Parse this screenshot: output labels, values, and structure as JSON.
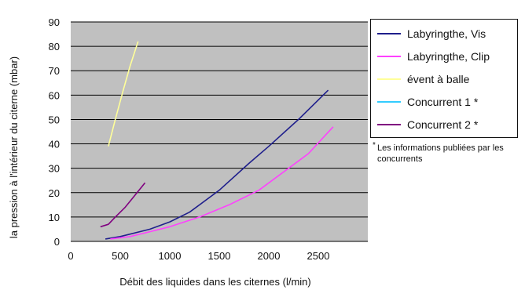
{
  "chart_data": {
    "type": "line",
    "title": "",
    "xlabel": "Débit des liquides dans les citernes (l/min)",
    "ylabel": "la pression à l'intérieur du citerne (mbar)",
    "xlim": [
      0,
      3000
    ],
    "ylim": [
      0,
      90
    ],
    "xticks": [
      0,
      500,
      1000,
      1500,
      2000,
      2500
    ],
    "yticks": [
      0,
      10,
      20,
      30,
      40,
      50,
      60,
      70,
      80,
      90
    ],
    "grid": "horizontal",
    "plot_background": "#c0c0c0",
    "legend_placement": "right",
    "series": [
      {
        "name": "Labyringthe, Vis",
        "color": "#1f1f8c",
        "points": [
          [
            350,
            1
          ],
          [
            500,
            2
          ],
          [
            800,
            5
          ],
          [
            1000,
            8
          ],
          [
            1200,
            12
          ],
          [
            1500,
            21
          ],
          [
            1800,
            32
          ],
          [
            2000,
            39
          ],
          [
            2300,
            50
          ],
          [
            2600,
            62
          ]
        ]
      },
      {
        "name": "Labyringthe, Clip",
        "color": "#ff40ff",
        "points": [
          [
            400,
            1
          ],
          [
            600,
            2
          ],
          [
            800,
            4
          ],
          [
            1000,
            6
          ],
          [
            1300,
            10
          ],
          [
            1600,
            15
          ],
          [
            1900,
            21
          ],
          [
            2100,
            27
          ],
          [
            2400,
            36
          ],
          [
            2650,
            47
          ]
        ]
      },
      {
        "name": "évent à balle",
        "color": "#ffff99",
        "points": [
          [
            380,
            39
          ],
          [
            450,
            50
          ],
          [
            530,
            62
          ],
          [
            600,
            72
          ],
          [
            680,
            82
          ]
        ]
      },
      {
        "name": "Concurrent 1 *",
        "color": "#33ccff",
        "points": []
      },
      {
        "name": "Concurrent 2 *",
        "color": "#800080",
        "points": [
          [
            300,
            6
          ],
          [
            380,
            7
          ],
          [
            450,
            10
          ],
          [
            550,
            14
          ],
          [
            650,
            19
          ],
          [
            750,
            24
          ]
        ]
      }
    ],
    "annotation": {
      "marker": "*",
      "text": "Les informations publiées par les concurrents"
    }
  }
}
